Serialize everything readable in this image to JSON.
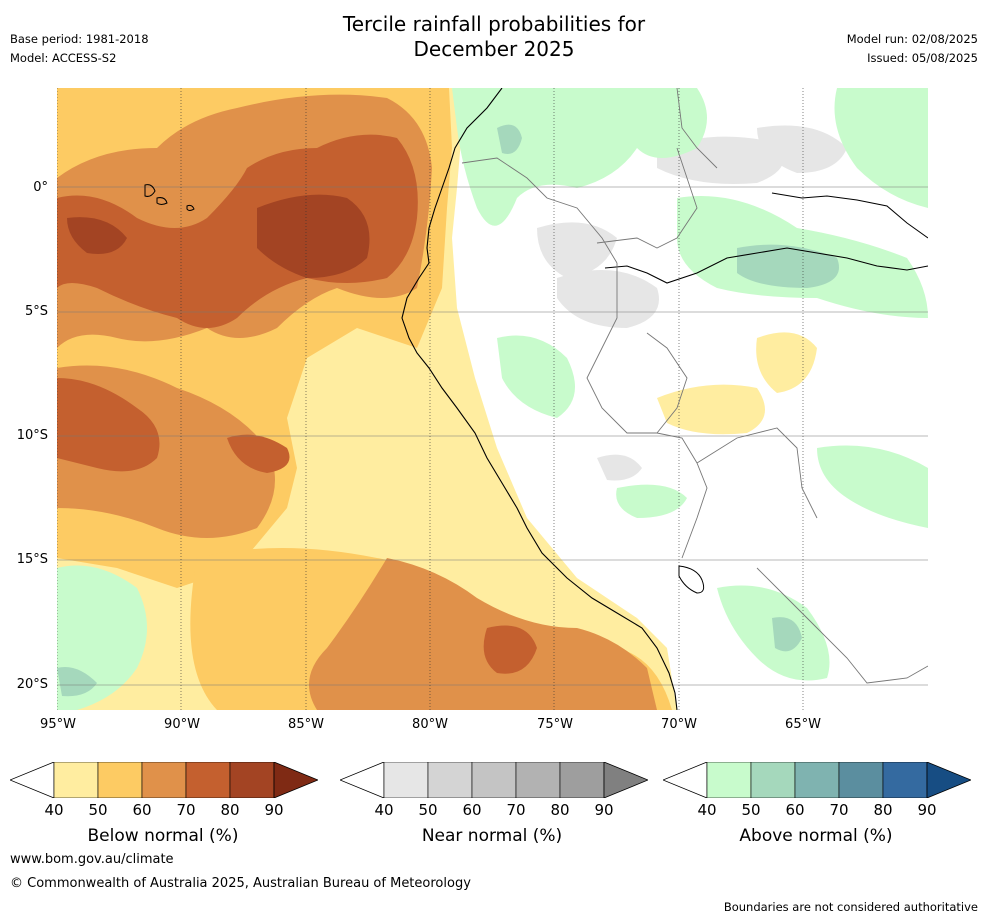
{
  "title_line1": "Tercile rainfall probabilities for",
  "title_line2": "December 2025",
  "meta": {
    "base_period": "Base period: 1981-2018",
    "model": "Model: ACCESS-S2",
    "model_run": "Model run: 02/08/2025",
    "issued": "Issued: 05/08/2025"
  },
  "lat_labels": [
    "0°",
    "5°S",
    "10°S",
    "15°S",
    "20°S"
  ],
  "lon_labels": [
    "95°W",
    "90°W",
    "85°W",
    "80°W",
    "75°W",
    "70°W",
    "65°W"
  ],
  "colors": {
    "below": [
      "#ffeda0",
      "#fdcb63",
      "#e0914a",
      "#c4602f",
      "#a34423",
      "#7f2a14"
    ],
    "near": [
      "#e6e6e6",
      "#d4d4d4",
      "#c4c4c4",
      "#b2b2b2",
      "#9e9e9e",
      "#808080"
    ],
    "above": [
      "#c8fbcc",
      "#a5d8bc",
      "#7fb3b0",
      "#5b8e9f",
      "#346aa0",
      "#174d83"
    ]
  },
  "colorbars": [
    {
      "title": "Below normal (%)",
      "ticks": [
        "40",
        "50",
        "60",
        "70",
        "80",
        "90"
      ]
    },
    {
      "title": "Near normal (%)",
      "ticks": [
        "40",
        "50",
        "60",
        "70",
        "80",
        "90"
      ]
    },
    {
      "title": "Above normal (%)",
      "ticks": [
        "40",
        "50",
        "60",
        "70",
        "80",
        "90"
      ]
    }
  ],
  "footer": {
    "url": "www.bom.gov.au/climate",
    "copyright": "© Commonwealth of Australia 2025, Australian Bureau of Meteorology",
    "disclaimer": "Boundaries are not considered authoritative"
  }
}
